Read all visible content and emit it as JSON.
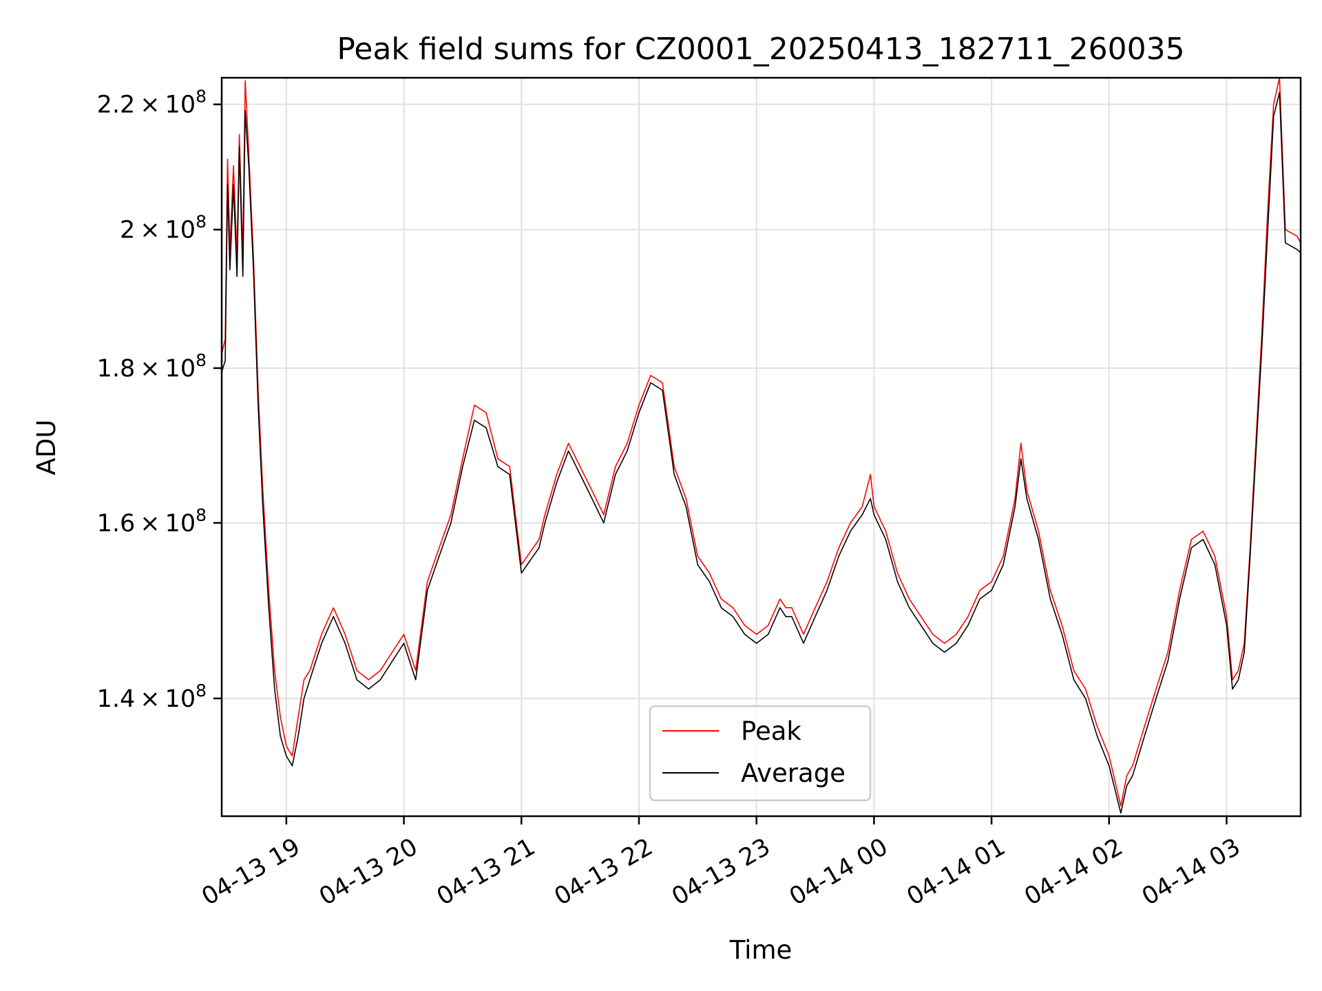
{
  "chart_data": {
    "type": "line",
    "title": "Peak field sums for CZ0001_20250413_182711_260035",
    "xlabel": "Time",
    "ylabel": "ADU",
    "yscale": "log",
    "ylim": [
      128000000,
      224500000
    ],
    "xlim_hours": [
      18.45,
      27.63
    ],
    "x_ticks": [
      {
        "label": "04-13 19",
        "value": 19
      },
      {
        "label": "04-13 20",
        "value": 20
      },
      {
        "label": "04-13 21",
        "value": 21
      },
      {
        "label": "04-13 22",
        "value": 22
      },
      {
        "label": "04-13 23",
        "value": 23
      },
      {
        "label": "04-14 00",
        "value": 24
      },
      {
        "label": "04-14 01",
        "value": 25
      },
      {
        "label": "04-14 02",
        "value": 26
      },
      {
        "label": "04-14 03",
        "value": 27
      }
    ],
    "y_ticks": [
      {
        "mantissa": "1.4",
        "exp": "8",
        "value": 140000000
      },
      {
        "mantissa": "1.6",
        "exp": "8",
        "value": 160000000
      },
      {
        "mantissa": "1.8",
        "exp": "8",
        "value": 180000000
      },
      {
        "mantissa": "2",
        "exp": "8",
        "value": 200000000
      },
      {
        "mantissa": "2.2",
        "exp": "8",
        "value": 220000000
      }
    ],
    "grid": true,
    "legend": {
      "position": "lower-center",
      "entries": [
        "Peak",
        "Average"
      ]
    },
    "series": [
      {
        "name": "Peak",
        "color": "#ff0000",
        "x": [
          18.45,
          18.48,
          18.5,
          18.52,
          18.55,
          18.58,
          18.6,
          18.63,
          18.65,
          18.68,
          18.72,
          18.76,
          18.8,
          18.85,
          18.9,
          18.95,
          19.0,
          19.05,
          19.1,
          19.15,
          19.2,
          19.3,
          19.4,
          19.5,
          19.6,
          19.7,
          19.8,
          19.9,
          20.0,
          20.1,
          20.2,
          20.25,
          20.3,
          20.4,
          20.5,
          20.6,
          20.7,
          20.8,
          20.9,
          21.0,
          21.05,
          21.1,
          21.15,
          21.2,
          21.3,
          21.4,
          21.5,
          21.6,
          21.7,
          21.8,
          21.9,
          22.0,
          22.1,
          22.2,
          22.3,
          22.4,
          22.5,
          22.6,
          22.7,
          22.8,
          22.9,
          23.0,
          23.1,
          23.2,
          23.25,
          23.3,
          23.4,
          23.5,
          23.6,
          23.7,
          23.8,
          23.9,
          23.97,
          24.0,
          24.1,
          24.2,
          24.3,
          24.4,
          24.5,
          24.6,
          24.7,
          24.8,
          24.9,
          25.0,
          25.1,
          25.2,
          25.25,
          25.3,
          25.4,
          25.5,
          25.6,
          25.7,
          25.8,
          25.9,
          26.0,
          26.1,
          26.15,
          26.2,
          26.3,
          26.4,
          26.5,
          26.6,
          26.7,
          26.8,
          26.9,
          27.0,
          27.05,
          27.1,
          27.15,
          27.2,
          27.3,
          27.35,
          27.4,
          27.45,
          27.5,
          27.6,
          27.63
        ],
        "values": [
          182000000,
          184000000,
          211000000,
          197000000,
          210000000,
          196000000,
          215000000,
          196000000,
          224000000,
          212000000,
          196000000,
          177000000,
          164000000,
          152000000,
          143000000,
          138000000,
          135000000,
          134000000,
          138000000,
          142000000,
          143000000,
          147000000,
          150000000,
          147000000,
          143000000,
          142000000,
          143000000,
          145000000,
          147000000,
          143000000,
          153000000,
          155000000,
          157000000,
          161000000,
          168000000,
          175000000,
          174000000,
          168000000,
          167000000,
          155000000,
          156000000,
          157000000,
          158000000,
          161000000,
          166000000,
          170000000,
          167000000,
          164000000,
          161000000,
          167000000,
          170000000,
          175000000,
          179000000,
          178000000,
          167000000,
          163000000,
          156000000,
          154000000,
          151000000,
          150000000,
          148000000,
          147000000,
          148000000,
          151000000,
          150000000,
          150000000,
          147000000,
          150000000,
          153000000,
          157000000,
          160000000,
          162000000,
          166000000,
          162000000,
          159000000,
          154000000,
          151000000,
          149000000,
          147000000,
          146000000,
          147000000,
          149000000,
          152000000,
          153000000,
          156000000,
          163000000,
          170000000,
          164000000,
          159000000,
          152000000,
          148000000,
          143000000,
          141000000,
          137000000,
          134000000,
          129000000,
          132000000,
          133000000,
          137000000,
          141000000,
          145000000,
          152000000,
          158000000,
          159000000,
          156000000,
          149000000,
          142000000,
          143000000,
          146000000,
          157000000,
          185000000,
          203000000,
          220000000,
          224500000,
          200000000,
          199000000,
          198000000
        ]
      },
      {
        "name": "Average",
        "color": "#000000",
        "x": [
          18.45,
          18.48,
          18.5,
          18.52,
          18.55,
          18.58,
          18.6,
          18.63,
          18.65,
          18.68,
          18.72,
          18.76,
          18.8,
          18.85,
          18.9,
          18.95,
          19.0,
          19.05,
          19.1,
          19.15,
          19.2,
          19.3,
          19.4,
          19.5,
          19.6,
          19.7,
          19.8,
          19.9,
          20.0,
          20.1,
          20.2,
          20.25,
          20.3,
          20.4,
          20.5,
          20.6,
          20.7,
          20.8,
          20.9,
          21.0,
          21.05,
          21.1,
          21.15,
          21.2,
          21.3,
          21.4,
          21.5,
          21.6,
          21.7,
          21.8,
          21.9,
          22.0,
          22.1,
          22.2,
          22.3,
          22.4,
          22.5,
          22.6,
          22.7,
          22.8,
          22.9,
          23.0,
          23.1,
          23.2,
          23.25,
          23.3,
          23.4,
          23.5,
          23.6,
          23.7,
          23.8,
          23.9,
          23.97,
          24.0,
          24.1,
          24.2,
          24.3,
          24.4,
          24.5,
          24.6,
          24.7,
          24.8,
          24.9,
          25.0,
          25.1,
          25.2,
          25.25,
          25.3,
          25.4,
          25.5,
          25.6,
          25.7,
          25.8,
          25.9,
          26.0,
          26.1,
          26.15,
          26.2,
          26.3,
          26.4,
          26.5,
          26.6,
          26.7,
          26.8,
          26.9,
          27.0,
          27.05,
          27.1,
          27.15,
          27.2,
          27.3,
          27.35,
          27.4,
          27.45,
          27.5,
          27.6,
          27.63
        ],
        "values": [
          179500000,
          181000000,
          207000000,
          194000000,
          207000000,
          193000000,
          213000000,
          193000000,
          219000000,
          210000000,
          194000000,
          175000000,
          162000000,
          150000000,
          141000000,
          136000000,
          134000000,
          133000000,
          136000000,
          140000000,
          142000000,
          146000000,
          149000000,
          146000000,
          142000000,
          141000000,
          142000000,
          144000000,
          146000000,
          142000000,
          152000000,
          154000000,
          156000000,
          160000000,
          167000000,
          173000000,
          172000000,
          167000000,
          166000000,
          154000000,
          155000000,
          156000000,
          157000000,
          160000000,
          165000000,
          169000000,
          166000000,
          163000000,
          160000000,
          166000000,
          169000000,
          174000000,
          178000000,
          177000000,
          166000000,
          162000000,
          155000000,
          153000000,
          150000000,
          149000000,
          147000000,
          146000000,
          147000000,
          150000000,
          149000000,
          149000000,
          146000000,
          149000000,
          152000000,
          156000000,
          159000000,
          161000000,
          163000000,
          161000000,
          158000000,
          153000000,
          150000000,
          148000000,
          146000000,
          145000000,
          146000000,
          148000000,
          151000000,
          152000000,
          155000000,
          162000000,
          168000000,
          163000000,
          158000000,
          151000000,
          147000000,
          142000000,
          140000000,
          136000000,
          133000000,
          128300000,
          131000000,
          132000000,
          136000000,
          140000000,
          144000000,
          151000000,
          157000000,
          158000000,
          155000000,
          148000000,
          141000000,
          142000000,
          145000000,
          156000000,
          183000000,
          200000000,
          218000000,
          222000000,
          198000000,
          197000000,
          196500000
        ]
      }
    ]
  }
}
